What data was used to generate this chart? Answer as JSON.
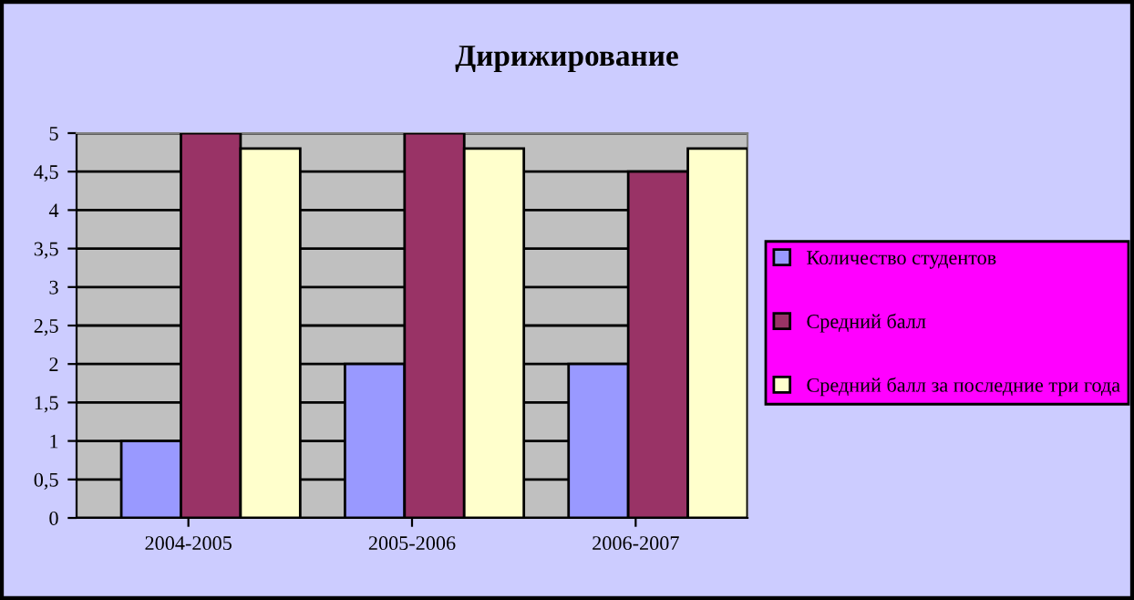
{
  "chart_data": {
    "type": "bar",
    "title": "Дирижирование",
    "categories": [
      "2004-2005",
      "2005-2006",
      "2006-2007"
    ],
    "series": [
      {
        "name": "Количество студентов",
        "color": "#9999ff",
        "values": [
          1,
          2,
          2
        ]
      },
      {
        "name": "Средний балл",
        "color": "#993366",
        "values": [
          5,
          5,
          4.5
        ]
      },
      {
        "name": "Средний балл за последние три года",
        "color": "#ffffcc",
        "values": [
          4.8,
          4.8,
          4.8
        ]
      }
    ],
    "ylim": [
      0,
      5
    ],
    "yticks": [
      0,
      {
        "value": 0.5,
        "label": "0,5"
      },
      1,
      {
        "value": 1.5,
        "label": "1,5"
      },
      2,
      {
        "value": 2.5,
        "label": "2,5"
      },
      3,
      {
        "value": 3.5,
        "label": "3,5"
      },
      4,
      {
        "value": 4.5,
        "label": "4,5"
      },
      5
    ],
    "grid": "y",
    "legend": "right"
  }
}
